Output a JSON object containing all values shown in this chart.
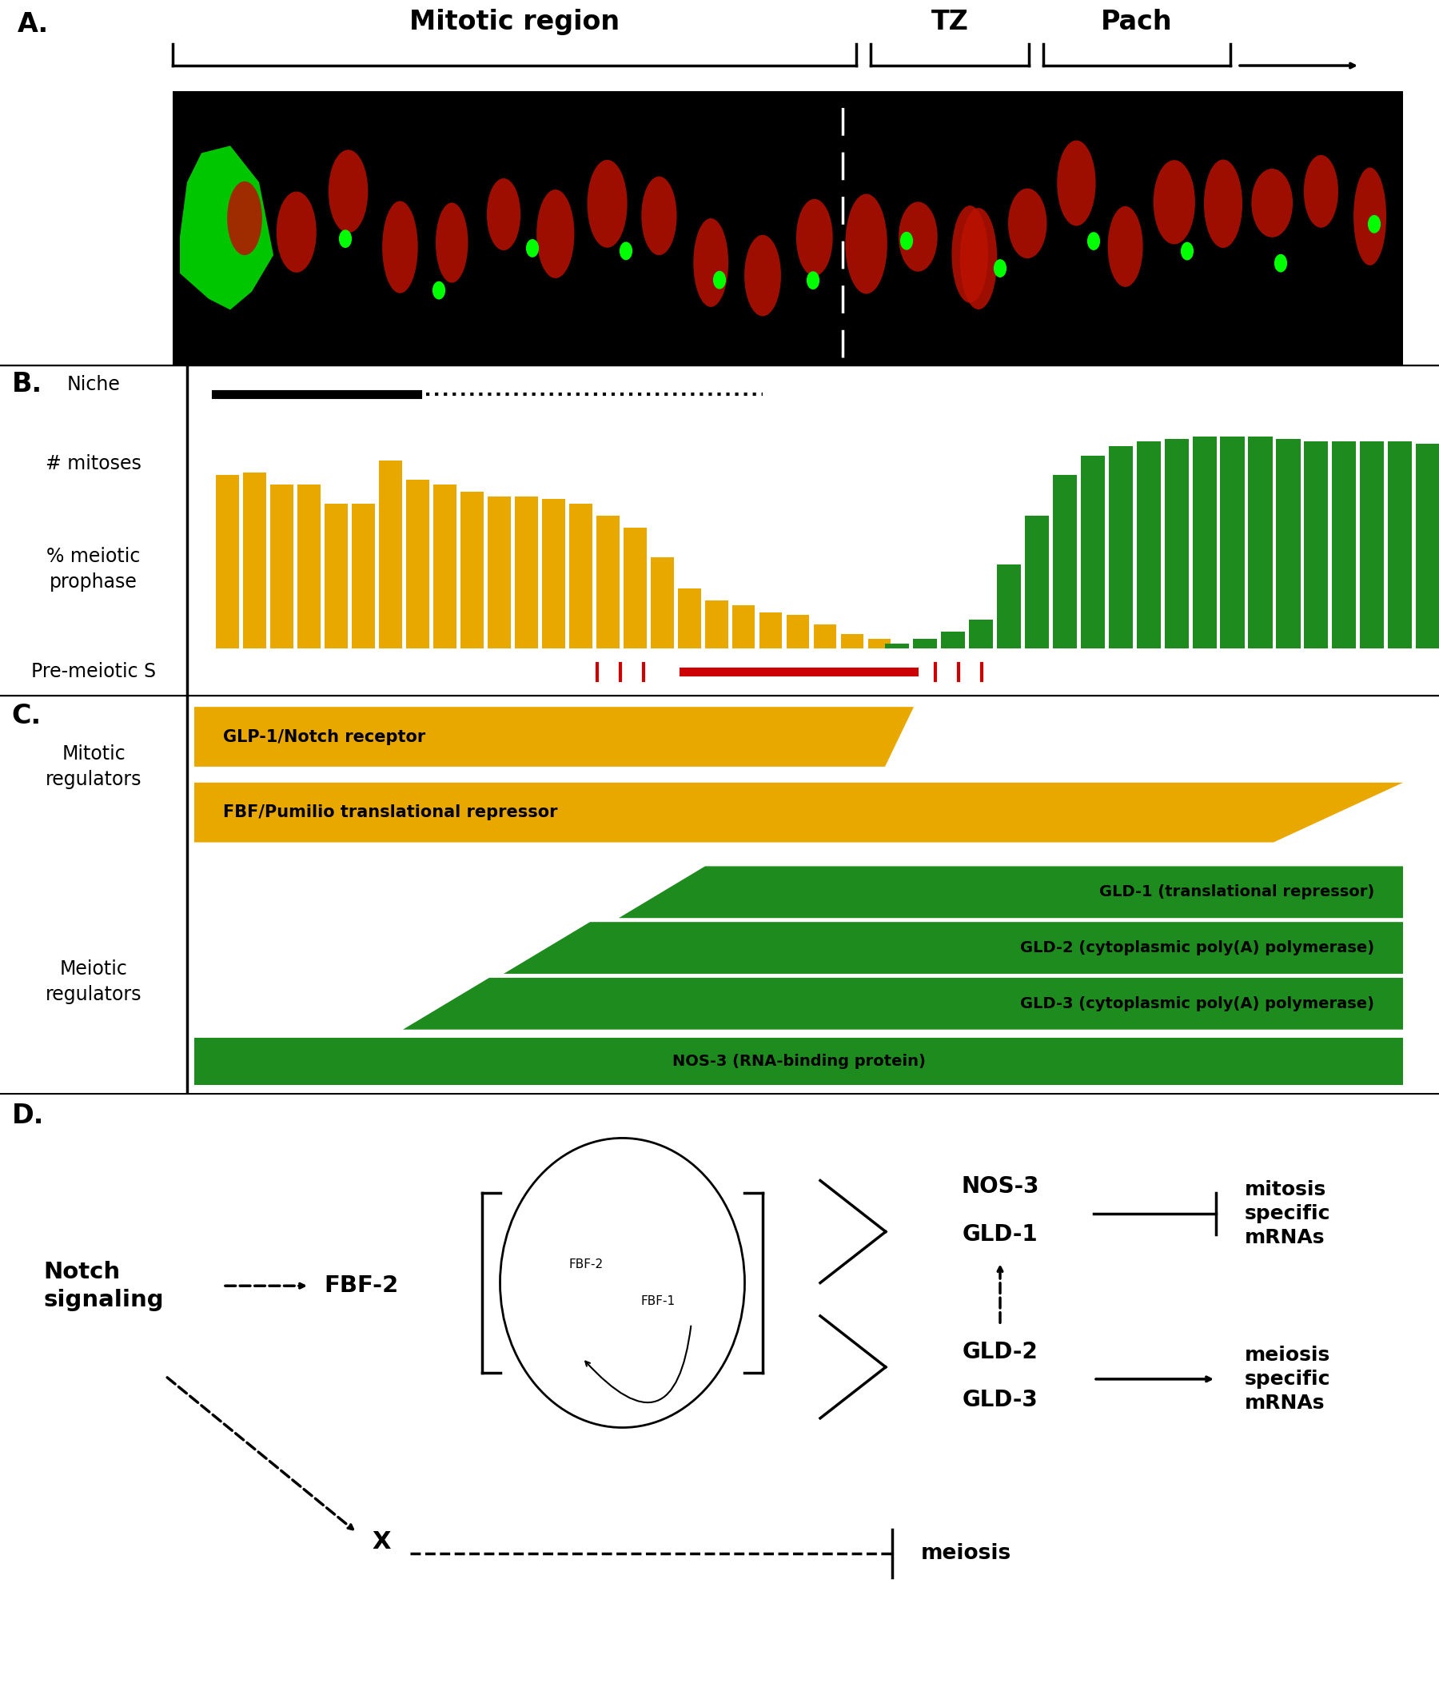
{
  "panel_A_label": "A.",
  "panel_B_label": "B.",
  "panel_C_label": "C.",
  "panel_D_label": "D.",
  "gold_color": "#E8A800",
  "green_color": "#1E8B1E",
  "red_color": "#CC0000",
  "bg_color": "#FFFFFF",
  "niche_label": "Niche",
  "mitoses_label": "# mitoses",
  "meiotic_label": "% meiotic\nprophase",
  "premeiotic_label": "Pre-meiotic S",
  "mitotic_reg_label": "Mitotic\nregulators",
  "meiotic_reg_label": "Meiotic\nregulators",
  "glp1_label": "GLP-1/Notch receptor",
  "fbf_label": "FBF/Pumilio translational repressor",
  "gld1_label": "GLD-1 (translational repressor)",
  "gld2_label": "GLD-2 (cytoplasmic poly(A) polymerase)",
  "gld3_label": "GLD-3 (cytoplasmic poly(A) polymerase)",
  "nos3_label": "NOS-3 (RNA-binding protein)",
  "mitotic_bars_gold": [
    0.72,
    0.73,
    0.68,
    0.68,
    0.6,
    0.6,
    0.78,
    0.7,
    0.68,
    0.65,
    0.63,
    0.63,
    0.62,
    0.6,
    0.55,
    0.5,
    0.38,
    0.25,
    0.2,
    0.18,
    0.15,
    0.14,
    0.1,
    0.06,
    0.04
  ],
  "meiotic_bars_green": [
    0.02,
    0.04,
    0.07,
    0.12,
    0.35,
    0.55,
    0.72,
    0.8,
    0.84,
    0.86,
    0.87,
    0.88,
    0.88,
    0.88,
    0.87,
    0.86,
    0.86,
    0.86,
    0.86,
    0.85
  ]
}
